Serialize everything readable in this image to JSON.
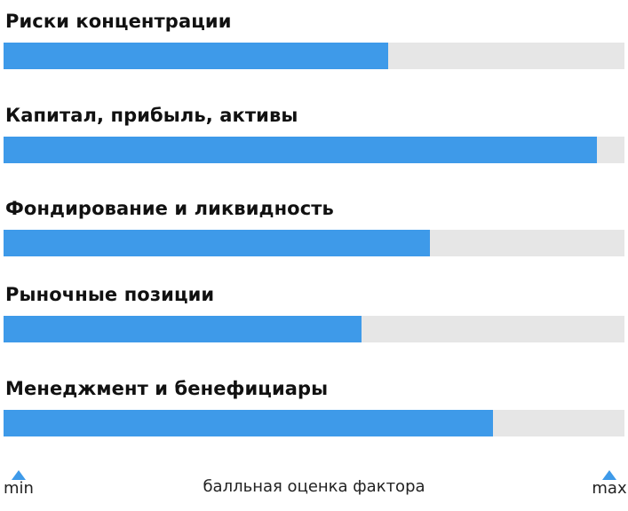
{
  "colors": {
    "bar": "#3e9ae9",
    "track": "#e6e6e6"
  },
  "chart_data": {
    "type": "bar",
    "orientation": "horizontal",
    "categories": [
      "Риски концентрации",
      "Капитал, прибыль, активы",
      "Фондирование и ликвидность",
      "Рыночные позиции",
      "Менеджмент и бенефициары"
    ],
    "values": [
      0.62,
      0.955,
      0.687,
      0.576,
      0.788
    ],
    "xlim": [
      0,
      1
    ],
    "xlabel": "балльная оценка фактора",
    "min_label": "min",
    "max_label": "max",
    "grid": false
  }
}
